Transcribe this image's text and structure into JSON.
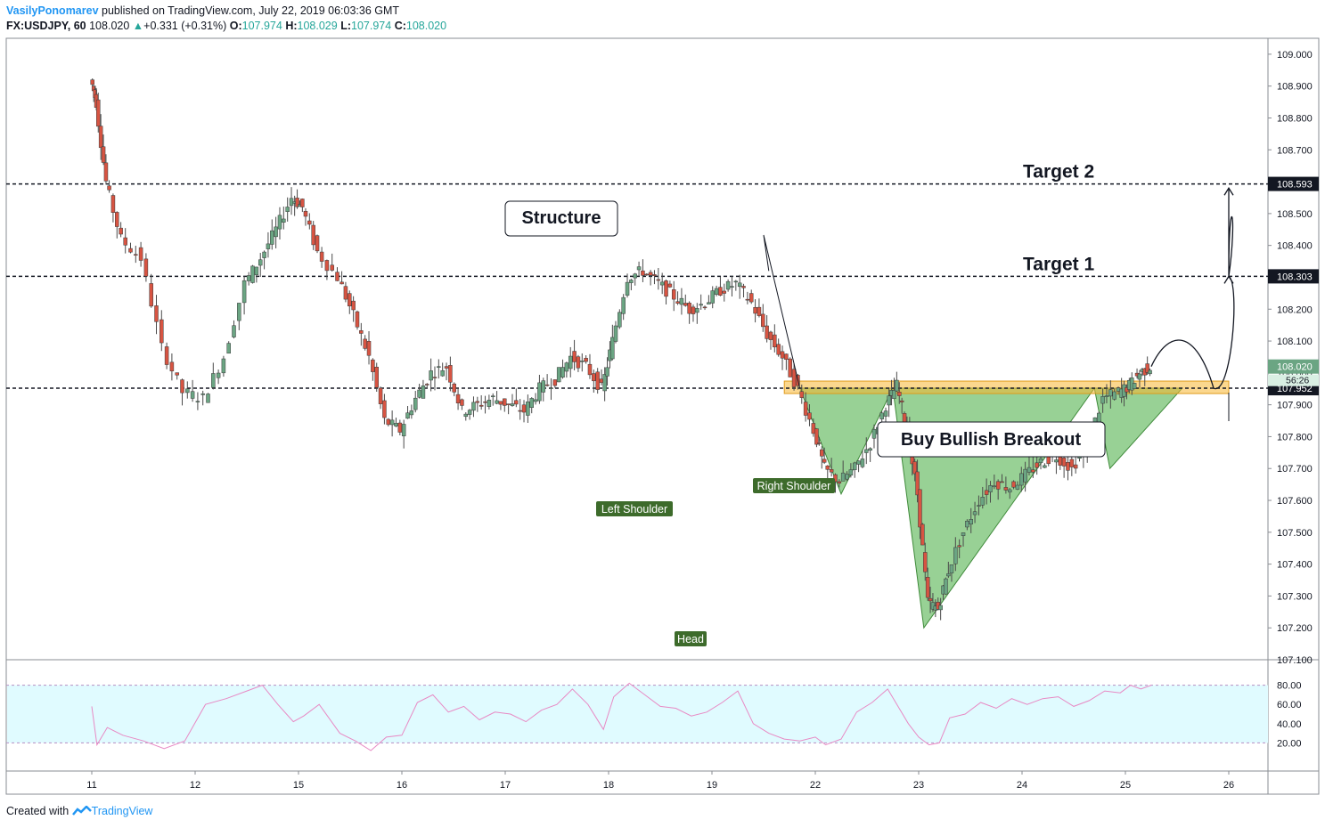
{
  "header": {
    "author": "VasilyPonomarev",
    "published_text": "published on TradingView.com, July 22, 2019 06:03:36 GMT",
    "symbol": "FX:USDJPY, 60",
    "last": "108.020",
    "change": "+0.331 (+0.31%)",
    "o_label": "O:",
    "o_value": "107.974",
    "h_label": "H:",
    "h_value": "108.029",
    "l_label": "L:",
    "l_value": "107.974",
    "c_label": "C:",
    "c_value": "108.020"
  },
  "footer": {
    "created_with": "Created with",
    "brand": "TradingView"
  },
  "colors": {
    "up": "#26a69a",
    "up_candle": "#6ba583",
    "down_candle": "#d75442",
    "pattern_fill": "#76c271",
    "zone": "#f7b731",
    "label_bg": "#3d6b2b",
    "rsi_line": "#e889c4",
    "rsi_band": "#e0fbff",
    "price_tag": "#131722",
    "current_tag": "#6ba583"
  },
  "chart_data": {
    "type": "candlestick",
    "price_axis": {
      "ticks": [
        "109.000",
        "108.900",
        "108.800",
        "108.700",
        "108.600",
        "108.500",
        "108.400",
        "108.300",
        "108.200",
        "108.100",
        "108.000",
        "107.900",
        "107.800",
        "107.700",
        "107.600",
        "107.500",
        "107.400",
        "107.300",
        "107.200",
        "107.100"
      ],
      "range": [
        107.1,
        109.05
      ]
    },
    "time_axis": {
      "ticks": [
        "11",
        "12",
        "15",
        "16",
        "17",
        "18",
        "19",
        "22",
        "23",
        "24",
        "25",
        "26"
      ]
    },
    "horizontal_levels": [
      {
        "label": "Target 2",
        "price": 108.593,
        "tag": "108.593"
      },
      {
        "label": "Target 1",
        "price": 108.303,
        "tag": "108.303"
      },
      {
        "label": "",
        "price": 107.952,
        "tag": "107.952"
      }
    ],
    "current_price": {
      "tag": "108.020",
      "countdown": "56:26"
    },
    "annotations": {
      "structure": "Structure",
      "target1": "Target 1",
      "target2": "Target 2",
      "breakout": "Buy Bullish Breakout",
      "left_shoulder": "Left Shoulder",
      "head": "Head",
      "right_shoulder": "Right Shoulder"
    },
    "path_points": [
      [
        11.0,
        108.92
      ],
      [
        11.05,
        108.85
      ],
      [
        11.15,
        108.6
      ],
      [
        11.3,
        108.42
      ],
      [
        11.5,
        108.36
      ],
      [
        11.7,
        108.08
      ],
      [
        11.9,
        107.94
      ],
      [
        12.1,
        107.92
      ],
      [
        12.3,
        108.05
      ],
      [
        12.5,
        108.28
      ],
      [
        12.65,
        108.36
      ],
      [
        12.8,
        108.45
      ],
      [
        12.95,
        108.55
      ],
      [
        13.05,
        108.52
      ],
      [
        13.2,
        108.38
      ],
      [
        13.4,
        108.3
      ],
      [
        13.55,
        108.18
      ],
      [
        13.7,
        108.05
      ],
      [
        13.85,
        107.85
      ],
      [
        14.0,
        107.82
      ],
      [
        14.15,
        107.92
      ],
      [
        14.3,
        108.0
      ],
      [
        14.45,
        108.02
      ],
      [
        14.6,
        107.88
      ],
      [
        14.75,
        107.9
      ],
      [
        14.9,
        107.92
      ],
      [
        15.05,
        107.9
      ],
      [
        15.2,
        107.88
      ],
      [
        15.35,
        107.95
      ],
      [
        15.5,
        107.98
      ],
      [
        15.65,
        108.05
      ],
      [
        15.8,
        108.02
      ],
      [
        15.95,
        107.95
      ],
      [
        16.05,
        108.1
      ],
      [
        16.2,
        108.3
      ],
      [
        16.35,
        108.32
      ],
      [
        16.5,
        108.28
      ],
      [
        16.65,
        108.24
      ],
      [
        16.8,
        108.2
      ],
      [
        16.95,
        108.22
      ],
      [
        17.1,
        108.26
      ],
      [
        17.25,
        108.28
      ],
      [
        17.4,
        108.22
      ],
      [
        17.55,
        108.12
      ],
      [
        17.7,
        108.05
      ],
      [
        17.85,
        107.95
      ],
      [
        18.0,
        107.82
      ],
      [
        18.1,
        107.7
      ],
      [
        18.25,
        107.66
      ],
      [
        18.4,
        107.7
      ],
      [
        18.55,
        107.78
      ],
      [
        18.7,
        107.9
      ],
      [
        18.8,
        107.96
      ],
      [
        18.9,
        107.82
      ],
      [
        19.0,
        107.62
      ],
      [
        19.1,
        107.28
      ],
      [
        19.2,
        107.26
      ],
      [
        19.3,
        107.38
      ],
      [
        19.45,
        107.5
      ],
      [
        19.6,
        107.6
      ],
      [
        19.75,
        107.66
      ],
      [
        19.9,
        107.64
      ],
      [
        20.05,
        107.68
      ],
      [
        20.2,
        107.72
      ],
      [
        20.35,
        107.74
      ],
      [
        20.5,
        107.7
      ],
      [
        20.65,
        107.78
      ],
      [
        20.8,
        107.92
      ],
      [
        20.95,
        107.94
      ],
      [
        21.05,
        107.96
      ],
      [
        21.15,
        108.0
      ],
      [
        21.25,
        108.02
      ]
    ],
    "rsi": {
      "ticks": [
        "80.00",
        "60.00",
        "40.00",
        "20.00"
      ],
      "levels": [
        80,
        20
      ],
      "points": [
        [
          11.0,
          58
        ],
        [
          11.05,
          18
        ],
        [
          11.15,
          36
        ],
        [
          11.3,
          28
        ],
        [
          11.5,
          22
        ],
        [
          11.7,
          14
        ],
        [
          11.9,
          22
        ],
        [
          12.1,
          60
        ],
        [
          12.3,
          66
        ],
        [
          12.5,
          74
        ],
        [
          12.65,
          80
        ],
        [
          12.8,
          60
        ],
        [
          12.95,
          42
        ],
        [
          13.05,
          48
        ],
        [
          13.2,
          60
        ],
        [
          13.4,
          30
        ],
        [
          13.55,
          22
        ],
        [
          13.7,
          12
        ],
        [
          13.85,
          26
        ],
        [
          14.0,
          28
        ],
        [
          14.15,
          62
        ],
        [
          14.3,
          70
        ],
        [
          14.45,
          52
        ],
        [
          14.6,
          58
        ],
        [
          14.75,
          44
        ],
        [
          14.9,
          52
        ],
        [
          15.05,
          50
        ],
        [
          15.2,
          42
        ],
        [
          15.35,
          54
        ],
        [
          15.5,
          60
        ],
        [
          15.65,
          76
        ],
        [
          15.8,
          60
        ],
        [
          15.95,
          34
        ],
        [
          16.05,
          68
        ],
        [
          16.2,
          82
        ],
        [
          16.35,
          70
        ],
        [
          16.5,
          58
        ],
        [
          16.65,
          56
        ],
        [
          16.8,
          48
        ],
        [
          16.95,
          52
        ],
        [
          17.1,
          62
        ],
        [
          17.25,
          74
        ],
        [
          17.4,
          40
        ],
        [
          17.55,
          30
        ],
        [
          17.7,
          24
        ],
        [
          17.85,
          22
        ],
        [
          18.0,
          26
        ],
        [
          18.1,
          18
        ],
        [
          18.25,
          24
        ],
        [
          18.4,
          52
        ],
        [
          18.55,
          62
        ],
        [
          18.7,
          76
        ],
        [
          18.8,
          58
        ],
        [
          18.9,
          40
        ],
        [
          19.0,
          26
        ],
        [
          19.1,
          18
        ],
        [
          19.2,
          20
        ],
        [
          19.3,
          46
        ],
        [
          19.45,
          50
        ],
        [
          19.6,
          62
        ],
        [
          19.75,
          56
        ],
        [
          19.9,
          66
        ],
        [
          20.05,
          60
        ],
        [
          20.2,
          66
        ],
        [
          20.35,
          68
        ],
        [
          20.5,
          58
        ],
        [
          20.65,
          64
        ],
        [
          20.8,
          74
        ],
        [
          20.95,
          72
        ],
        [
          21.05,
          80
        ],
        [
          21.15,
          76
        ],
        [
          21.25,
          80
        ]
      ]
    },
    "grid": true
  }
}
